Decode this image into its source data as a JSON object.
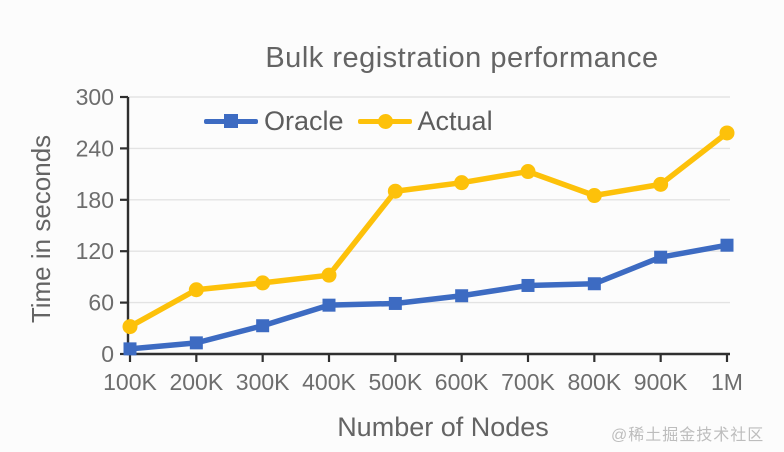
{
  "watermark": "@稀土掘金技术社区",
  "colors": {
    "oracle_blue": "#3d6bc2",
    "actual_gold": "#fdc10a",
    "axis": "#2f2f2f",
    "grid": "#e3e3e3",
    "tick_text": "#6d6d6d",
    "label_text": "#646464",
    "watermark_gray": "#bdbdbd"
  },
  "chart_data": {
    "type": "line",
    "title": "Bulk registration performance",
    "xlabel": "Number of Nodes",
    "ylabel": "Time in seconds",
    "categories": [
      "100K",
      "200K",
      "300K",
      "400K",
      "500K",
      "600K",
      "700K",
      "800K",
      "900K",
      "1M"
    ],
    "series": [
      {
        "name": "Oracle",
        "color": "#3d6bc2",
        "marker": "square",
        "values": [
          6,
          13,
          33,
          57,
          59,
          68,
          80,
          82,
          113,
          127
        ]
      },
      {
        "name": "Actual",
        "color": "#fdc10a",
        "marker": "circle",
        "values": [
          32,
          75,
          83,
          92,
          190,
          200,
          213,
          185,
          198,
          258
        ]
      }
    ],
    "ylim": [
      0,
      300
    ],
    "yticks": [
      0,
      60,
      120,
      180,
      240,
      300
    ],
    "grid": "horizontal",
    "legend_position": "top-center-inside"
  }
}
